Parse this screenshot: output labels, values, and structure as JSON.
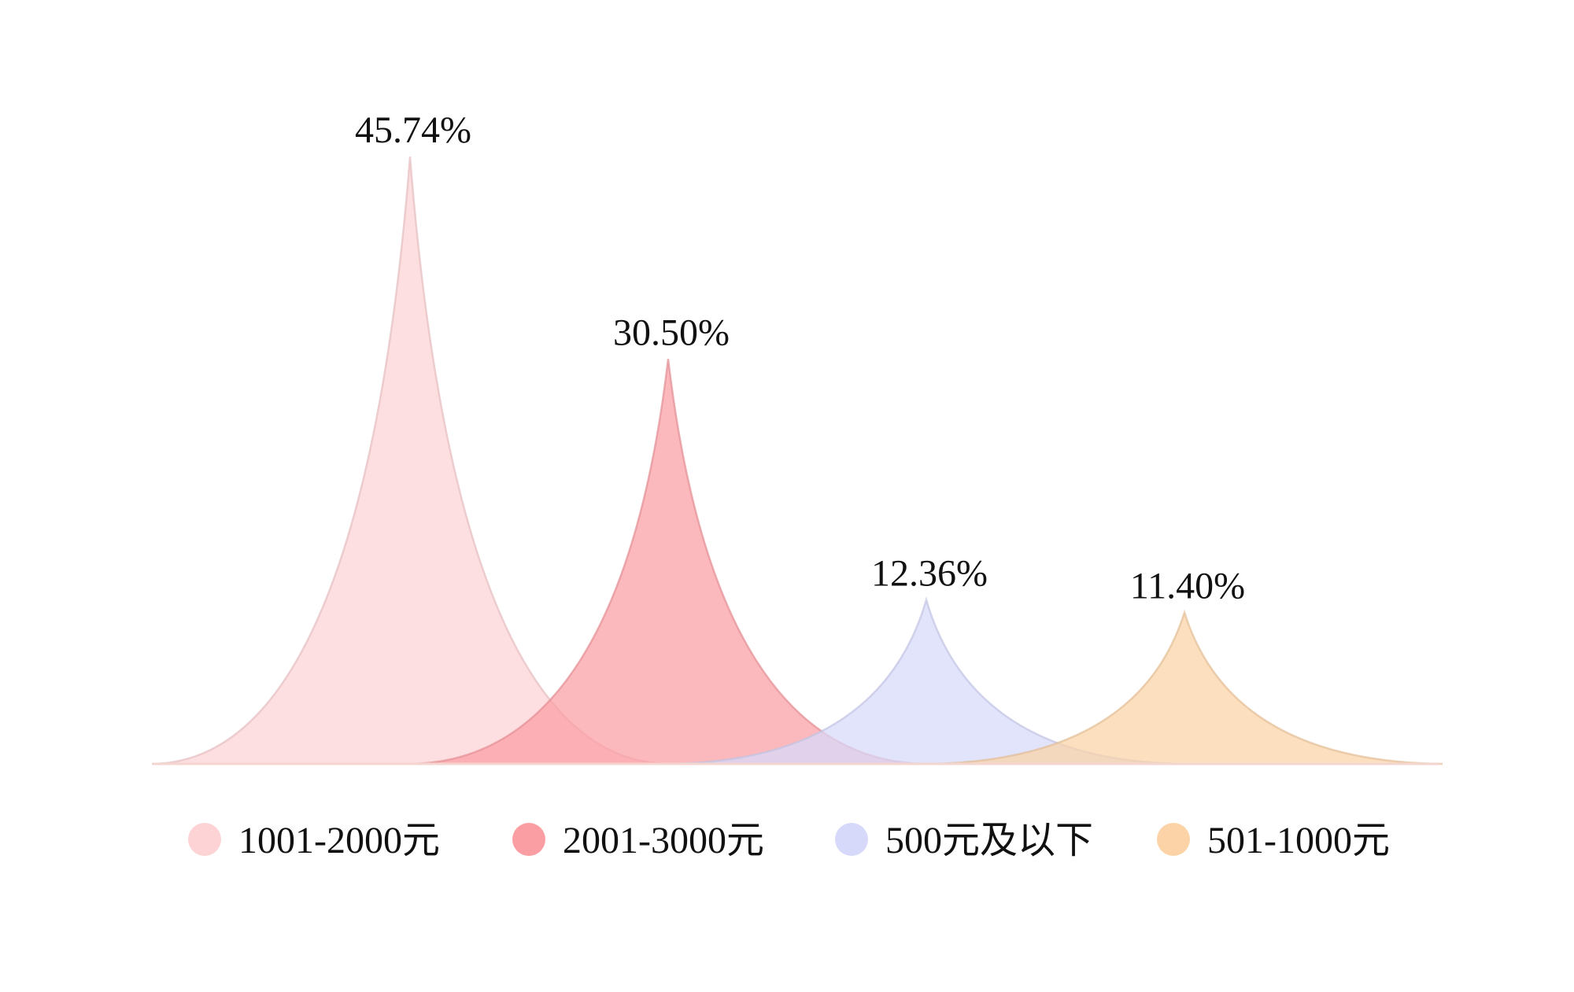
{
  "chart_data": {
    "type": "pictorial-peak",
    "title": "",
    "xlabel": "",
    "ylabel": "",
    "unit": "%",
    "ylim": [
      0,
      50
    ],
    "grid": false,
    "legend_position": "bottom",
    "series": [
      {
        "name": "1001-2000元",
        "value": 45.74,
        "label": "45.74%",
        "color": "#fdd3d6"
      },
      {
        "name": "2001-3000元",
        "value": 30.5,
        "label": "30.50%",
        "color": "#fb9ea4"
      },
      {
        "name": "500元及以下",
        "value": 12.36,
        "label": "12.36%",
        "color": "#d7d9fb"
      },
      {
        "name": "501-1000元",
        "value": 11.4,
        "label": "11.40%",
        "color": "#fbd3a6"
      }
    ]
  }
}
